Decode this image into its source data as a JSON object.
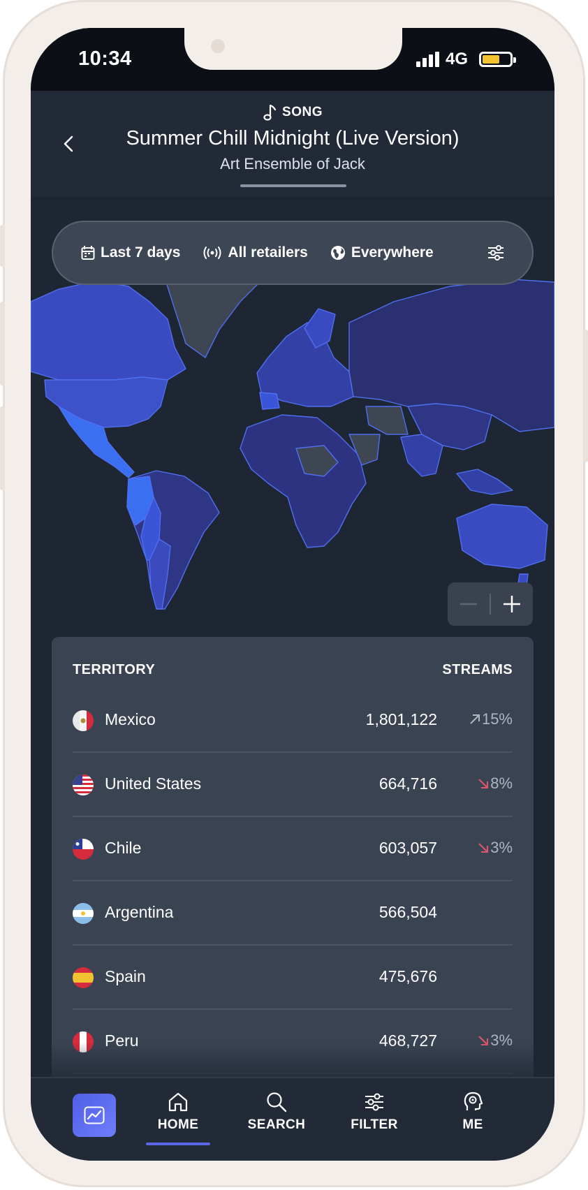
{
  "status": {
    "time": "10:34",
    "network": "4G"
  },
  "header": {
    "kind": "SONG",
    "title": "Summer Chill Midnight (Live Version)",
    "artist": "Art Ensemble of Jack"
  },
  "filters": {
    "period": "Last 7 days",
    "retailers": "All retailers",
    "region": "Everywhere"
  },
  "table": {
    "col_territory": "TERRITORY",
    "col_streams": "STREAMS",
    "rows": [
      {
        "country": "Mexico",
        "streams": "1,801,122",
        "trend": "15%",
        "direction": "up"
      },
      {
        "country": "United States",
        "streams": "664,716",
        "trend": "8%",
        "direction": "down"
      },
      {
        "country": "Chile",
        "streams": "603,057",
        "trend": "3%",
        "direction": "down"
      },
      {
        "country": "Argentina",
        "streams": "566,504",
        "trend": "",
        "direction": "none"
      },
      {
        "country": "Spain",
        "streams": "475,676",
        "trend": "",
        "direction": "none"
      },
      {
        "country": "Peru",
        "streams": "468,727",
        "trend": "3%",
        "direction": "down"
      }
    ]
  },
  "nav": {
    "home": "HOME",
    "search": "SEARCH",
    "filter": "FILTER",
    "me": "ME"
  },
  "colors": {
    "accent": "#5b67e6",
    "up": "#aeb6c2",
    "down": "#e0566d",
    "map_high": "#3b6cf0",
    "map_mid": "#3b4bbd",
    "map_low": "#2d3380"
  }
}
